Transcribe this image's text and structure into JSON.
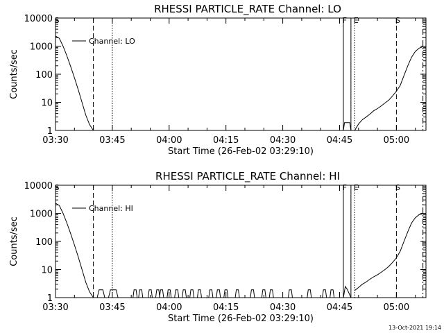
{
  "chart_data": [
    {
      "type": "line",
      "title": "RHESSI PARTICLE_RATE Channel: LO",
      "xlabel": "Start Time (26-Feb-02 03:29:10)",
      "ylabel": "Counts/sec",
      "y_scale": "log",
      "ylim": [
        1,
        10000
      ],
      "xlim": [
        "03:30",
        "05:07"
      ],
      "x_ticks": [
        "03:30",
        "03:45",
        "04:00",
        "04:15",
        "04:30",
        "04:45",
        "05:00"
      ],
      "y_ticks": [
        "1",
        "10",
        "100",
        "1000",
        "10000"
      ],
      "legend": [
        "Channel: LO"
      ],
      "legend_position": "top-left",
      "grid": false,
      "markers": [
        {
          "label": "S",
          "time": "03:30",
          "style": "solid"
        },
        {
          "label": "",
          "time": "03:40",
          "style": "dashed"
        },
        {
          "label": "",
          "time": "03:45",
          "style": "dotted"
        },
        {
          "label": "F",
          "time": "04:46",
          "style": "solid"
        },
        {
          "label": "",
          "time": "04:48",
          "style": "solid"
        },
        {
          "label": "E",
          "time": "04:49",
          "style": "dotted"
        },
        {
          "label": "S",
          "time": "05:00",
          "style": "dashed"
        },
        {
          "label": "",
          "time": "05:07",
          "style": "dashdot"
        }
      ],
      "series": [
        {
          "name": "Channel: LO",
          "x": [
            "03:30",
            "03:31",
            "03:32",
            "03:33",
            "03:34",
            "03:35",
            "03:36",
            "03:37",
            "03:38",
            "03:39",
            "03:40"
          ],
          "y": [
            2300,
            1900,
            1000,
            450,
            190,
            75,
            28,
            10,
            3.5,
            1.6,
            1
          ]
        },
        {
          "name": "Channel: LO",
          "x": [
            "04:46",
            "04:46.3",
            "04:47.7",
            "04:48"
          ],
          "y": [
            1,
            1.9,
            1.9,
            1
          ]
        },
        {
          "name": "Channel: LO",
          "x": [
            "04:49",
            "04:50",
            "04:51",
            "04:52",
            "04:53",
            "04:54",
            "04:55",
            "04:56",
            "04:57",
            "04:58",
            "04:59",
            "05:00",
            "05:01",
            "05:02",
            "05:03",
            "05:04",
            "05:05",
            "05:06",
            "05:07"
          ],
          "y": [
            1,
            1.7,
            2.4,
            3,
            3.8,
            5,
            6,
            7.5,
            9.5,
            12,
            17,
            25,
            40,
            90,
            200,
            400,
            650,
            850,
            950
          ]
        }
      ]
    },
    {
      "type": "line",
      "title": "RHESSI PARTICLE_RATE Channel: HI",
      "xlabel": "Start Time (26-Feb-02 03:29:10)",
      "ylabel": "Counts/sec",
      "y_scale": "log",
      "ylim": [
        1,
        10000
      ],
      "xlim": [
        "03:30",
        "05:07"
      ],
      "x_ticks": [
        "03:30",
        "03:45",
        "04:00",
        "04:15",
        "04:30",
        "04:45",
        "05:00"
      ],
      "y_ticks": [
        "1",
        "10",
        "100",
        "1000",
        "10000"
      ],
      "legend": [
        "Channel: HI"
      ],
      "legend_position": "top-left",
      "grid": false,
      "markers": [
        {
          "label": "S",
          "time": "03:30",
          "style": "solid"
        },
        {
          "label": "",
          "time": "03:40",
          "style": "dashed"
        },
        {
          "label": "",
          "time": "03:45",
          "style": "dotted"
        },
        {
          "label": "F",
          "time": "04:46",
          "style": "solid"
        },
        {
          "label": "",
          "time": "04:48",
          "style": "solid"
        },
        {
          "label": "E",
          "time": "04:49",
          "style": "dotted"
        },
        {
          "label": "S",
          "time": "05:00",
          "style": "dashed"
        },
        {
          "label": "",
          "time": "05:07",
          "style": "dashdot"
        }
      ],
      "series": [
        {
          "name": "Channel: HI",
          "x": [
            "03:30",
            "03:31",
            "03:32",
            "03:33",
            "03:34",
            "03:35",
            "03:36",
            "03:37",
            "03:38",
            "03:39",
            "03:40",
            "03:41",
            "03:41.5",
            "03:42.5",
            "03:43",
            "03:44",
            "03:44.5",
            "03:45",
            "03:46",
            "03:46.5",
            "03:47",
            "03:47.5",
            "03:48",
            "03:48.5",
            "03:49"
          ],
          "y": [
            2300,
            1900,
            1000,
            450,
            190,
            75,
            28,
            10,
            3.5,
            1.6,
            1,
            1,
            1.9,
            1.9,
            1,
            1,
            1.9,
            1.9,
            1.9,
            1,
            1,
            1,
            1,
            1,
            1
          ]
        },
        {
          "name": "Channel: HI",
          "x": [
            "04:46",
            "04:46.5",
            "04:47",
            "04:48"
          ],
          "y": [
            1,
            2.5,
            2,
            1
          ]
        },
        {
          "name": "Channel: HI",
          "x": [
            "04:49",
            "04:50",
            "04:51",
            "04:52",
            "04:53",
            "04:54",
            "04:55",
            "04:56",
            "04:57",
            "04:58",
            "04:59",
            "05:00",
            "05:01",
            "05:02",
            "05:03",
            "05:04",
            "05:05",
            "05:06",
            "05:07"
          ],
          "y": [
            1.8,
            2.3,
            3,
            3.6,
            4.5,
            5.5,
            6.5,
            8,
            10,
            13,
            18,
            26,
            45,
            100,
            220,
            450,
            700,
            900,
            950
          ]
        }
      ],
      "spikes_y": 1.9,
      "spike_times": [
        "03:51",
        "03:52.5",
        "03:55",
        "03:57",
        "03:58",
        "04:00",
        "04:02",
        "04:04",
        "04:06",
        "04:08",
        "04:11",
        "04:13",
        "04:15",
        "04:18",
        "04:22",
        "04:25",
        "04:27",
        "04:32",
        "04:37",
        "04:41",
        "04:43"
      ]
    }
  ],
  "timestamp": "13-Oct-2021 19:14"
}
